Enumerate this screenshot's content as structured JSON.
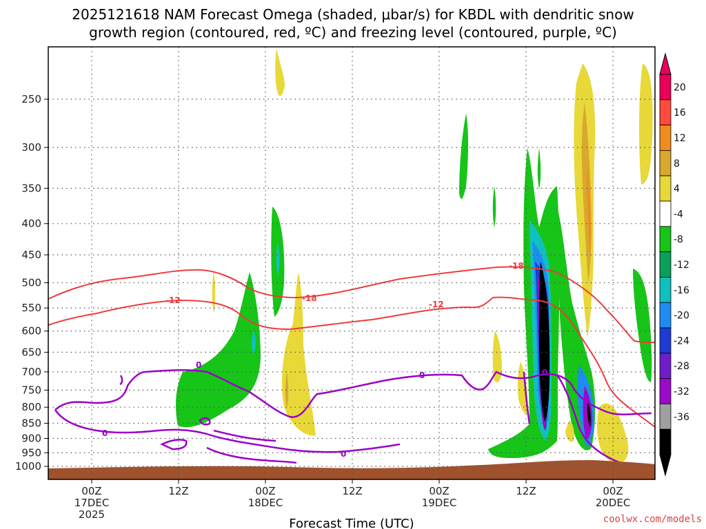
{
  "chart_data": {
    "type": "heatmap",
    "title_lines": [
      "2025121618 NAM Forecast Omega (shaded, μbar/s) for KBDL with dendritic snow",
      "growth region (contoured, red, ºC) and freezing level (contoured, purple, ºC)"
    ],
    "xlabel": "Forecast Time (UTC)",
    "ylabel": "",
    "y_scale": "log-pressure (hPa)",
    "y_ticks": [
      "250",
      "300",
      "350",
      "400",
      "450",
      "500",
      "550",
      "600",
      "650",
      "700",
      "750",
      "800",
      "850",
      "900",
      "950",
      "1000"
    ],
    "x_ticks": [
      {
        "label": "00Z",
        "sub": "17DEC",
        "sub2": "2025"
      },
      {
        "label": "12Z",
        "sub": "",
        "sub2": ""
      },
      {
        "label": "00Z",
        "sub": "18DEC",
        "sub2": ""
      },
      {
        "label": "12Z",
        "sub": "",
        "sub2": ""
      },
      {
        "label": "00Z",
        "sub": "19DEC",
        "sub2": ""
      },
      {
        "label": "12Z",
        "sub": "",
        "sub2": ""
      },
      {
        "label": "00Z",
        "sub": "20DEC",
        "sub2": ""
      }
    ],
    "grid": true,
    "colorbar": {
      "labels": [
        "20",
        "16",
        "12",
        "8",
        "4",
        "-4",
        "-8",
        "-12",
        "-16",
        "-20",
        "-24",
        "-28",
        "-32",
        "-36"
      ],
      "colors": [
        "#e8005a",
        "#ff4a3d",
        "#f08c1e",
        "#d9a82e",
        "#e8d838",
        "#ffffff",
        "#17c418",
        "#0aa05a",
        "#10c0c0",
        "#1e8cf0",
        "#1e3cd2",
        "#6e1ec8",
        "#9b0ac8",
        "#a0a0a0",
        "#000000"
      ],
      "top_arrow_color": "#e8005a",
      "bottom_arrow_color": "#000000"
    },
    "contours": [
      {
        "label": "-18",
        "color": "#f03a3a",
        "kind": "dendritic"
      },
      {
        "label": "-12",
        "color": "#f03a3a",
        "kind": "dendritic"
      },
      {
        "label": "0",
        "color": "#9b00c8",
        "kind": "freezing"
      }
    ],
    "credit": "coolwx.com/models"
  }
}
